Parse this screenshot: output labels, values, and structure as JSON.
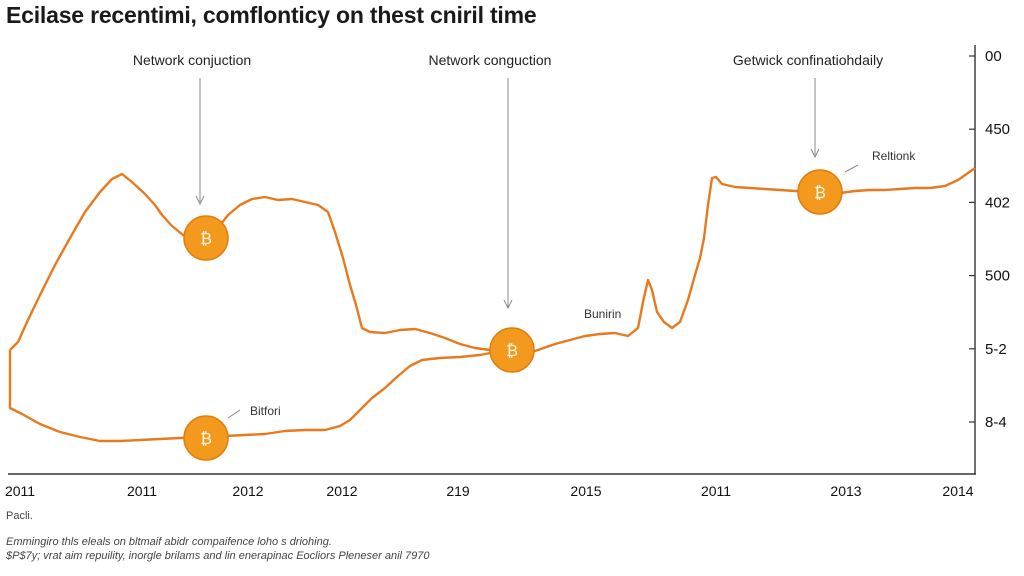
{
  "chart_data": {
    "type": "line",
    "title": "Ecilase recentimi, comflonticy on thest cniril time",
    "y_ticks": [
      "00",
      "450",
      "402",
      "500",
      "5-2",
      "8-4"
    ],
    "x_ticks": [
      "2011",
      "2011",
      "2012",
      "2012",
      "219",
      "2015",
      "2011",
      "2013",
      "2014"
    ],
    "x_left_sublabel": "Pacli.",
    "annotations": [
      {
        "label": "Network conjuction"
      },
      {
        "label": "Network conguction"
      },
      {
        "label": "Getwick confinatiohdaily"
      },
      {
        "label": "Reltionk"
      },
      {
        "label": "Bunirin"
      },
      {
        "label": "Bitfori"
      }
    ],
    "series": [
      {
        "color": "#e8791f"
      },
      {
        "color": "#e8791f"
      }
    ],
    "marker_color": "#f39a1e",
    "grid": false
  },
  "footnote": {
    "line1": "Emmingiro thls eleals on bltmaif abidr compaifence loho s driohing.",
    "line2": "$P$7y; vrat aim repuility, inorgle brilams and lin enerapinac Eocliors Pleneser anil 7970"
  }
}
